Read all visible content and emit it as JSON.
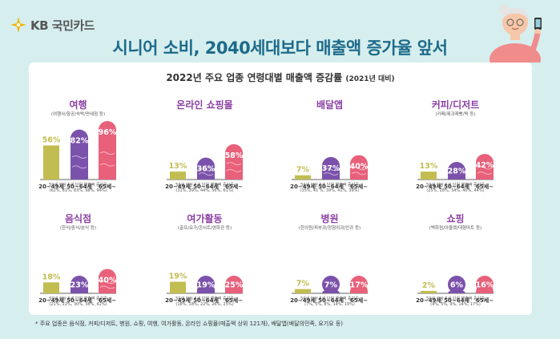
{
  "brand": {
    "logo_text": "KB 국민카드"
  },
  "header": {
    "title": "시니어 소비, 2040세대보다 매출액 증가율 앞서"
  },
  "panel": {
    "subtitle": "2022년 주요 업종 연령대별 매출액 증감률",
    "subtitle_suffix": "(2021년 대비)"
  },
  "colors": {
    "age_20_49": "#c2bd50",
    "age_50_64": "#7b52ab",
    "age_65": "#e8607a",
    "title": "#8b3fa3",
    "headline": "#1d6a8a"
  },
  "footnote": "* 주요 업종은 음식점, 커피/디저트, 병원, 쇼핑, 여행, 여가활동, 온라인 쇼핑몰(매출액 상위 121개), 배달앱(배달의민족, 요기요 등)",
  "chart_data": [
    {
      "type": "bar",
      "title": "여행",
      "desc": "(여행사/항공/숙박/면세점 등)",
      "categories": [
        "20~49세",
        "50~64세",
        "65세~"
      ],
      "values": [
        56,
        82,
        96
      ],
      "labels": [
        "56%",
        "82%",
        "96%"
      ],
      "note": "50세 이상 5세 단위 매출액 증감률",
      "note2": "(62%, 81%, 83%, 98%, 94%)"
    },
    {
      "type": "bar",
      "title": "온라인 쇼핑몰",
      "desc": "",
      "categories": [
        "20~49세",
        "50~64세",
        "65세~"
      ],
      "values": [
        13,
        36,
        58
      ],
      "labels": [
        "13%",
        "36%",
        "58%"
      ],
      "note": "50세 이상 5세 단위 매출액 증감률",
      "note2": "(31%, 39%, 44%, 56%, 61%)"
    },
    {
      "type": "bar",
      "title": "배달앱",
      "desc": "",
      "categories": [
        "20~49세",
        "50~64세",
        "65세~"
      ],
      "values": [
        7,
        37,
        40
      ],
      "labels": [
        "7%",
        "37%",
        "40%"
      ],
      "note": "50세 이상 5세 단위 매출액 증감률",
      "note2": "(35%, 41 %, 39%, 41%, 39%)"
    },
    {
      "type": "bar",
      "title": "커피/디저트",
      "desc": "(카페/제과제빵/떡 등)",
      "categories": [
        "20~49세",
        "50~64세",
        "65세~"
      ],
      "values": [
        13,
        28,
        42
      ],
      "labels": [
        "13%",
        "28%",
        "42%"
      ],
      "note": "50세 이상 5세 단위 매출액 증감률",
      "note2": "(25%, 28%, 34%, 40%, 44%)"
    },
    {
      "type": "bar",
      "title": "음식점",
      "desc": "(한식/중식/분식 등)",
      "categories": [
        "20~49세",
        "50~64세",
        "65세~"
      ],
      "values": [
        18,
        23,
        40
      ],
      "labels": [
        "18%",
        "23%",
        "40%"
      ],
      "note": "50세 이상 5세 단위 매출액 증감률",
      "note2": "(21%, 22%, 30%, 38%, 42%)"
    },
    {
      "type": "bar",
      "title": "여가활동",
      "desc": "(골프/요가/콘서트/영화관 등)",
      "categories": [
        "20~49세",
        "50~64세",
        "65세~"
      ],
      "values": [
        19,
        19,
        25
      ],
      "labels": [
        "19%",
        "19%",
        "25%"
      ],
      "note": "50세 이상 5세 단위 매출액 증감률",
      "note2": "(18%, 18%, 22%, 26%, 25%)"
    },
    {
      "type": "bar",
      "title": "병원",
      "desc": "(한의원/피부과/정형외과/안과 등)",
      "categories": [
        "20~49세",
        "50~64세",
        "65세~"
      ],
      "values": [
        7,
        7,
        17
      ],
      "labels": [
        "7%",
        "7%",
        "17%"
      ],
      "note": "50세 이상 5세 단위 매출액 증감률",
      "note2": "(7%, 5%, 8%, 14%, 19%)"
    },
    {
      "type": "bar",
      "title": "쇼핑",
      "desc": "(백화점/아울렛/대형마트 등)",
      "categories": [
        "20~49세",
        "50~64세",
        "65세~"
      ],
      "values": [
        2,
        6,
        16
      ],
      "labels": [
        "2%",
        "6%",
        "16%"
      ],
      "note": "50세 이상 5세 단위 매출액 증감률",
      "note2": "(4%, 5%, 9%, 14%, 17%)"
    }
  ]
}
